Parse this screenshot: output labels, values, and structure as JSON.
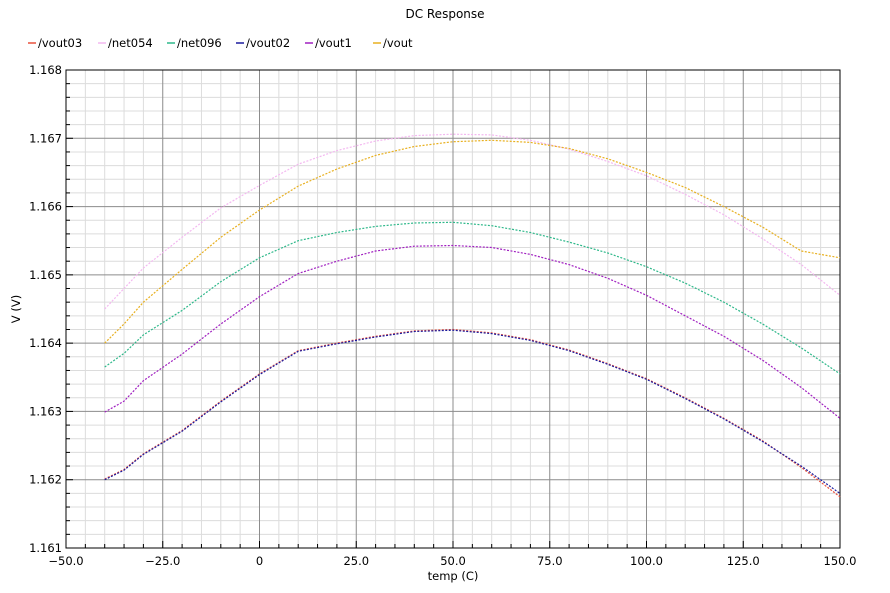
{
  "chart_data": {
    "type": "line",
    "title": "DC Response",
    "xlabel": "temp (C)",
    "ylabel": "V (V)",
    "xlim": [
      -50,
      150
    ],
    "ylim": [
      1.161,
      1.168
    ],
    "x_ticks": [
      -50,
      -25,
      0,
      25,
      50,
      75,
      100,
      125,
      150
    ],
    "x_tick_labels": [
      "−50.0",
      "−25.0",
      "0",
      "25.0",
      "50.0",
      "75.0",
      "100.0",
      "125.0",
      "150.0"
    ],
    "y_ticks": [
      1.161,
      1.162,
      1.163,
      1.164,
      1.165,
      1.166,
      1.167,
      1.168
    ],
    "y_tick_labels": [
      "1.161",
      "1.162",
      "1.163",
      "1.164",
      "1.165",
      "1.166",
      "1.167",
      "1.168"
    ],
    "grid": true,
    "legend_position": "top-left",
    "series": [
      {
        "name": "/vout03",
        "color": "#e8503c",
        "x": [
          -40,
          -35,
          -30,
          -20,
          -10,
          0,
          10,
          20,
          30,
          40,
          50,
          60,
          70,
          80,
          90,
          100,
          110,
          120,
          130,
          140,
          150
        ],
        "y": [
          1.16201,
          1.16215,
          1.16238,
          1.16272,
          1.16315,
          1.16355,
          1.16389,
          1.164,
          1.1641,
          1.16418,
          1.1642,
          1.16415,
          1.16405,
          1.1639,
          1.1637,
          1.16348,
          1.1632,
          1.1629,
          1.16257,
          1.16218,
          1.16175
        ]
      },
      {
        "name": "/net054",
        "color": "#f3b8f0",
        "x": [
          -40,
          -35,
          -30,
          -20,
          -10,
          0,
          10,
          20,
          30,
          40,
          50,
          60,
          70,
          80,
          90,
          100,
          110,
          120,
          130,
          140,
          150
        ],
        "y": [
          1.1645,
          1.1648,
          1.1651,
          1.16555,
          1.16598,
          1.16631,
          1.16662,
          1.16682,
          1.16696,
          1.16704,
          1.16706,
          1.16705,
          1.16697,
          1.16684,
          1.16666,
          1.16645,
          1.16618,
          1.16588,
          1.16553,
          1.16515,
          1.1647
        ]
      },
      {
        "name": "/net096",
        "color": "#2eb88a",
        "x": [
          -40,
          -35,
          -30,
          -20,
          -10,
          0,
          10,
          20,
          30,
          40,
          50,
          60,
          70,
          80,
          90,
          100,
          110,
          120,
          130,
          140,
          150
        ],
        "y": [
          1.16365,
          1.16385,
          1.16412,
          1.16448,
          1.1649,
          1.16525,
          1.1655,
          1.16562,
          1.16571,
          1.16576,
          1.16577,
          1.16572,
          1.16562,
          1.16548,
          1.16532,
          1.16512,
          1.16488,
          1.1646,
          1.16428,
          1.16393,
          1.16355
        ]
      },
      {
        "name": "/vout02",
        "color": "#1a1a9e",
        "x": [
          -40,
          -35,
          -30,
          -20,
          -10,
          0,
          10,
          20,
          30,
          40,
          50,
          60,
          70,
          80,
          90,
          100,
          110,
          120,
          130,
          140,
          150
        ],
        "y": [
          1.162,
          1.16214,
          1.16237,
          1.16271,
          1.16314,
          1.16354,
          1.16388,
          1.16399,
          1.16409,
          1.16417,
          1.16419,
          1.16414,
          1.16404,
          1.16389,
          1.16369,
          1.16347,
          1.16319,
          1.16289,
          1.16256,
          1.1622,
          1.1618
        ]
      },
      {
        "name": "/vout1",
        "color": "#a020c0",
        "x": [
          -40,
          -35,
          -30,
          -20,
          -10,
          0,
          10,
          20,
          30,
          40,
          50,
          60,
          70,
          80,
          90,
          100,
          110,
          120,
          130,
          140,
          150
        ],
        "y": [
          1.16299,
          1.16315,
          1.16345,
          1.16384,
          1.16428,
          1.16468,
          1.16502,
          1.1652,
          1.16535,
          1.16542,
          1.16543,
          1.1654,
          1.1653,
          1.16515,
          1.16495,
          1.1647,
          1.1644,
          1.1641,
          1.16375,
          1.16335,
          1.1629
        ]
      },
      {
        "name": "/vout",
        "color": "#e8b020",
        "x": [
          -40,
          -35,
          -30,
          -20,
          -10,
          0,
          10,
          20,
          30,
          40,
          50,
          60,
          70,
          80,
          90,
          100,
          110,
          120,
          130,
          140,
          150
        ],
        "y": [
          1.164,
          1.16428,
          1.1646,
          1.16508,
          1.16555,
          1.16595,
          1.1663,
          1.16655,
          1.16675,
          1.16688,
          1.16695,
          1.16697,
          1.16694,
          1.16685,
          1.1667,
          1.1665,
          1.16628,
          1.166,
          1.1657,
          1.16535,
          1.16525
        ]
      }
    ]
  }
}
